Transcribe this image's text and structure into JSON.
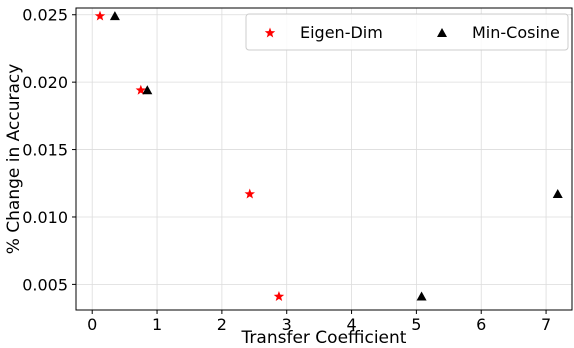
{
  "chart_data": {
    "type": "scatter",
    "xlabel": "Transfer Coefficient",
    "ylabel": "% Change in Accuracy",
    "xlim": [
      -0.25,
      7.4
    ],
    "ylim": [
      0.0031,
      0.0255
    ],
    "x_ticks": [
      0,
      1,
      2,
      3,
      4,
      5,
      6,
      7
    ],
    "x_tick_labels": [
      "0",
      "1",
      "2",
      "3",
      "4",
      "5",
      "6",
      "7"
    ],
    "y_ticks": [
      0.005,
      0.01,
      0.015,
      0.02,
      0.025
    ],
    "y_tick_labels": [
      "0.005",
      "0.010",
      "0.015",
      "0.020",
      "0.025"
    ],
    "grid": true,
    "legend_position": "top-right",
    "series": [
      {
        "name": "Eigen-Dim",
        "marker": "star",
        "color": "#ff0000",
        "points": [
          {
            "x": 0.12,
            "y": 0.0249
          },
          {
            "x": 0.75,
            "y": 0.0194
          },
          {
            "x": 2.43,
            "y": 0.0117
          },
          {
            "x": 2.88,
            "y": 0.0041
          }
        ]
      },
      {
        "name": "Min-Cosine",
        "marker": "triangle",
        "color": "#000000",
        "points": [
          {
            "x": 0.35,
            "y": 0.0249
          },
          {
            "x": 0.85,
            "y": 0.0194
          },
          {
            "x": 7.18,
            "y": 0.0117
          },
          {
            "x": 5.08,
            "y": 0.0041
          }
        ]
      }
    ]
  }
}
